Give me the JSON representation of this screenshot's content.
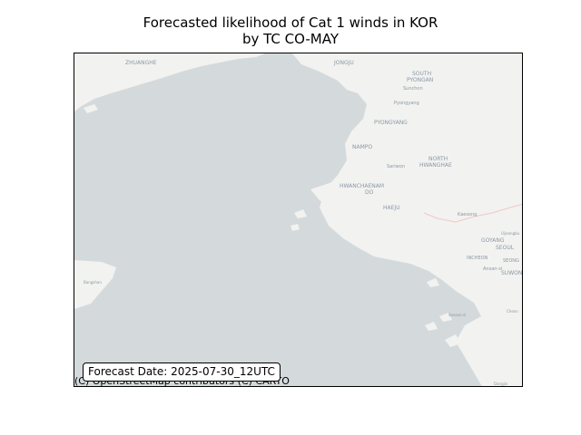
{
  "title": {
    "line1": "Forecasted likelihood of Cat 1 winds in KOR",
    "line2": "by TC CO-MAY"
  },
  "map": {
    "colors": {
      "water": "#d4dadc",
      "land": "#f2f2f0",
      "border": "#f0c8c8",
      "label": "#8a98a6"
    },
    "places": {
      "zhuanghe": "ZHUANGHE",
      "jongju": "JONGJU",
      "south_pyongan_1": "SOUTH",
      "south_pyongan_2": "PYONGAN",
      "sunchon": "Sunchon",
      "pyongyang_city": "Pyongyang",
      "pyongyang": "PYONGYANG",
      "nampo": "NAMPO",
      "sariwon": "Sariwon",
      "north_hwanghae_1": "NORTH",
      "north_hwanghae_2": "HWANGHAE",
      "south_hwanghae_1": "HWANCHAENAM",
      "south_hwanghae_2": "DO",
      "haeju": "HAEJU",
      "kaesong": "Kaesong",
      "uijeongbu": "Uijeongbu",
      "goyang": "GOYANG",
      "seoul": "SEOUL",
      "incheon": "INCHEON",
      "seongnam": "SEONG",
      "ansan": "Ansan-si",
      "suwon": "SUWON",
      "bangshan": "Bangshan",
      "seosan": "Seosan-si",
      "cheonan": "Cheon",
      "dangjin": "Dangjin"
    }
  },
  "forecast_label": "Forecast Date: 2025-07-30_12UTC",
  "attribution": "(C) OpenStreetMap contributors (C) CARTO"
}
